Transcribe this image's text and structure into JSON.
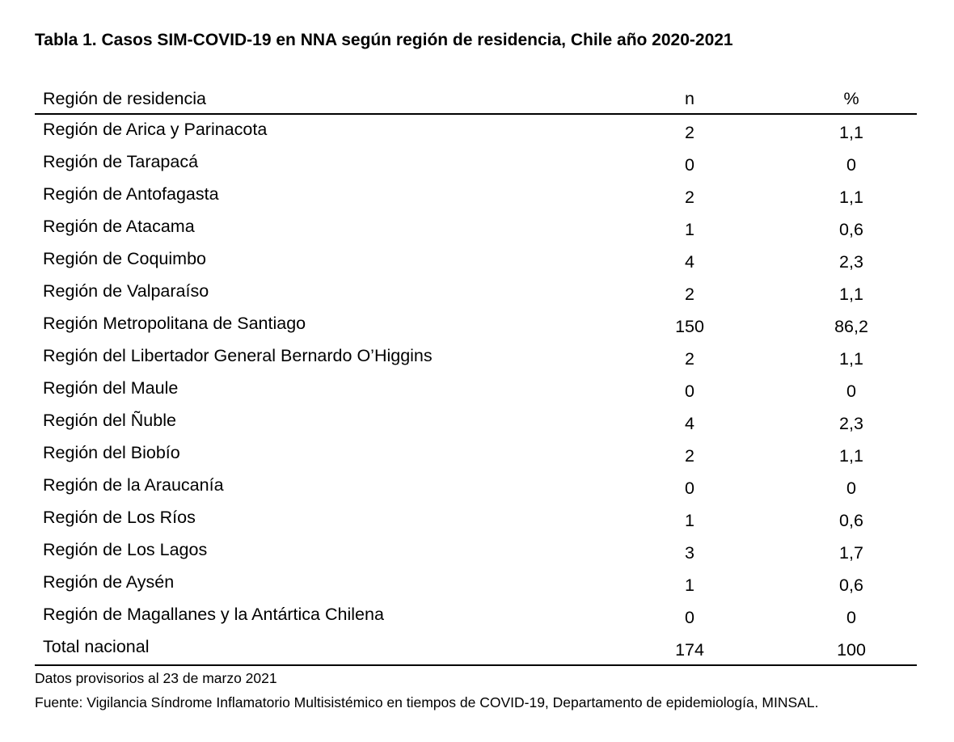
{
  "title": "Tabla 1. Casos SIM-COVID-19 en NNA según región de residencia, Chile año 2020-2021",
  "headers": {
    "region": "Región de residencia",
    "n": "n",
    "pct": "%"
  },
  "rows": [
    {
      "region": "Región de Arica y Parinacota",
      "n": "2",
      "pct": "1,1"
    },
    {
      "region": "Región de Tarapacá",
      "n": "0",
      "pct": "0"
    },
    {
      "region": "Región de Antofagasta",
      "n": "2",
      "pct": "1,1"
    },
    {
      "region": "Región de Atacama",
      "n": "1",
      "pct": "0,6"
    },
    {
      "region": "Región de Coquimbo",
      "n": "4",
      "pct": "2,3"
    },
    {
      "region": "Región de Valparaíso",
      "n": "2",
      "pct": "1,1"
    },
    {
      "region": "Región Metropolitana de Santiago",
      "n": "150",
      "pct": "86,2"
    },
    {
      "region": "Región del Libertador General Bernardo O’Higgins",
      "n": "2",
      "pct": "1,1"
    },
    {
      "region": "Región del Maule",
      "n": "0",
      "pct": "0"
    },
    {
      "region": "Región del Ñuble",
      "n": "4",
      "pct": "2,3"
    },
    {
      "region": "Región del Biobío",
      "n": "2",
      "pct": "1,1"
    },
    {
      "region": "Región de la Araucanía",
      "n": "0",
      "pct": "0"
    },
    {
      "region": "Región de Los Ríos",
      "n": "1",
      "pct": "0,6"
    },
    {
      "region": "Región de Los Lagos",
      "n": "3",
      "pct": "1,7"
    },
    {
      "region": "Región de Aysén",
      "n": "1",
      "pct": "0,6"
    },
    {
      "region": "Región de Magallanes y la Antártica Chilena",
      "n": "0",
      "pct": "0"
    }
  ],
  "total": {
    "region": "Total nacional",
    "n": "174",
    "pct": "100"
  },
  "notes": {
    "data_note": "Datos provisorios al 23 de marzo 2021",
    "source": "Fuente: Vigilancia Síndrome Inflamatorio Multisistémico en tiempos de COVID-19, Departamento de epidemiología, MINSAL."
  }
}
